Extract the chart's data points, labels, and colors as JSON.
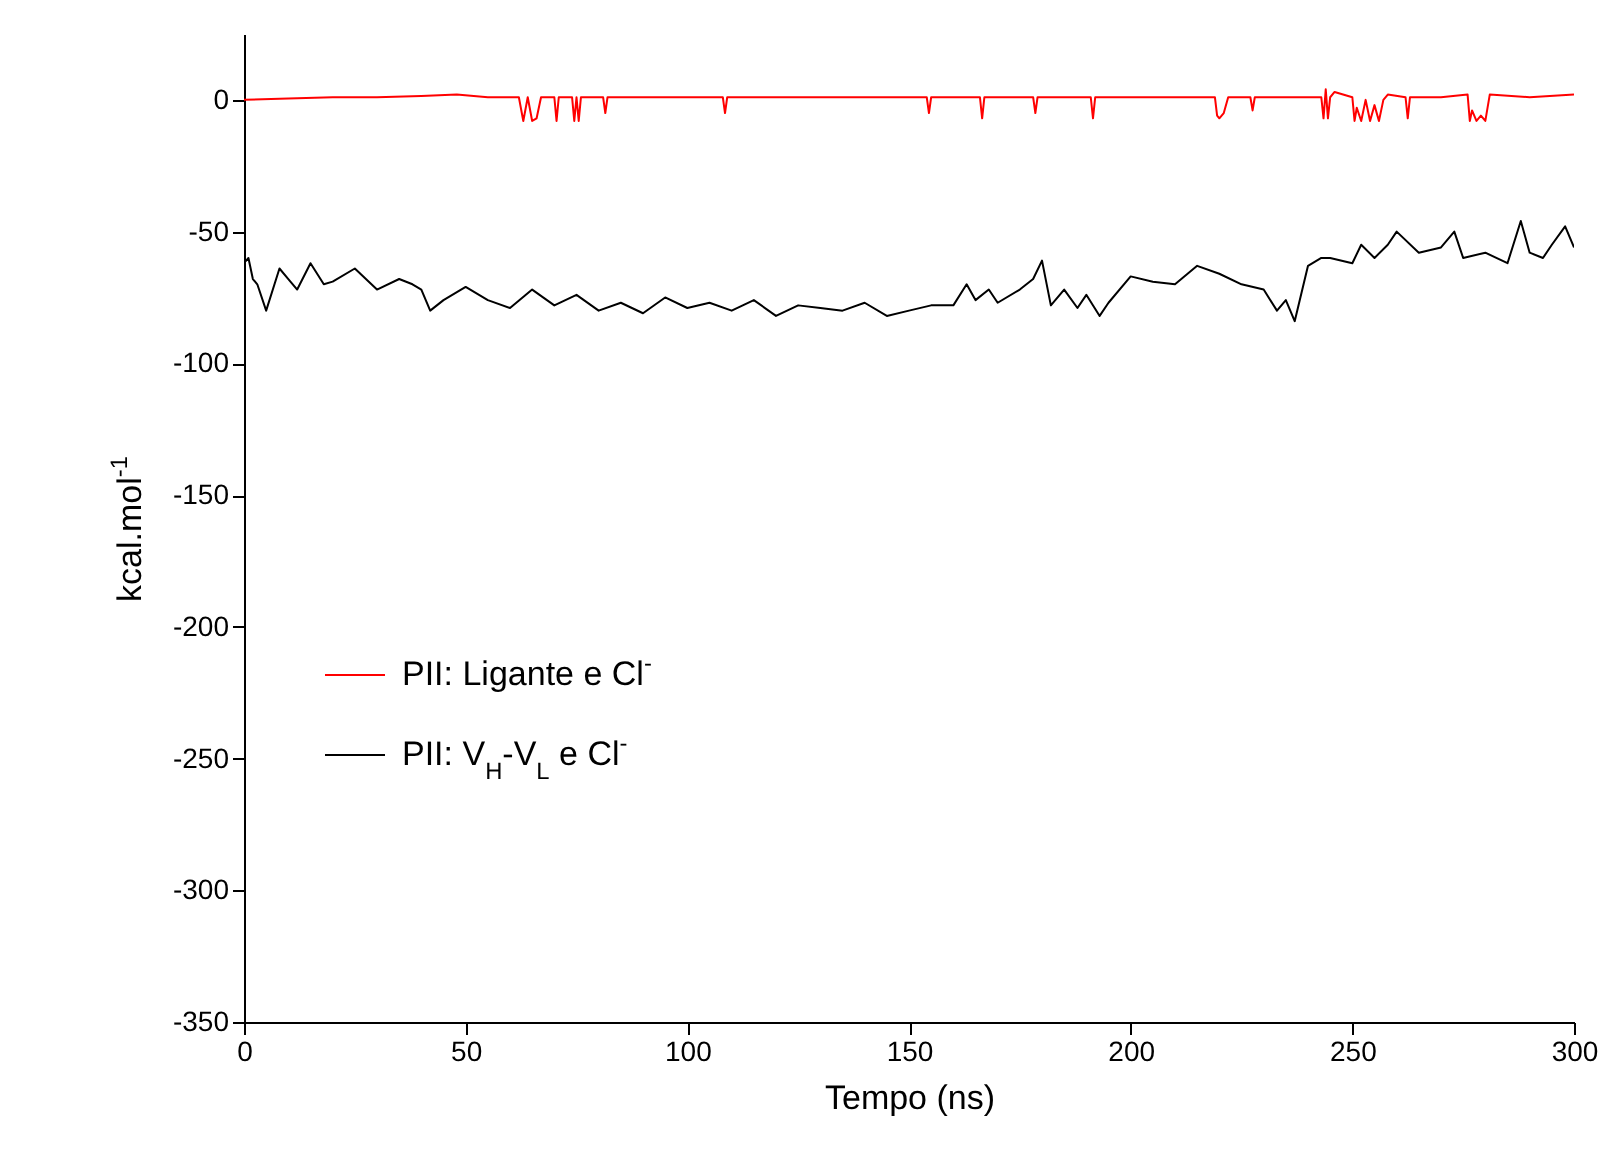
{
  "chart_data": {
    "type": "line",
    "xlabel": "Tempo (ns)",
    "ylabel": "kcal.mol$^{-1}$",
    "xlim": [
      0,
      300
    ],
    "ylim": [
      -350,
      25
    ],
    "xticks": [
      0,
      50,
      100,
      150,
      200,
      250,
      300
    ],
    "yticks": [
      -350,
      -300,
      -250,
      -200,
      -150,
      -100,
      -50,
      0
    ],
    "grid": false,
    "legend": "left",
    "marker": "none",
    "line_style": "solid",
    "series": [
      {
        "name": "PII: Ligante e Cl$^{-}$",
        "color": "#ff0000",
        "x": [
          0,
          10,
          20,
          30,
          40,
          48,
          55,
          62,
          63,
          64,
          65,
          66,
          67,
          70,
          70.5,
          71,
          74,
          74.5,
          75,
          75.5,
          76,
          81,
          81.5,
          82,
          95,
          108,
          108.5,
          109,
          120,
          140,
          154,
          154.5,
          155,
          166,
          166.5,
          167,
          178,
          178.5,
          179,
          191,
          191.5,
          192,
          205,
          219,
          219.5,
          220,
          221,
          222,
          227,
          227.5,
          228,
          235,
          243,
          243.5,
          244,
          244.5,
          245,
          246,
          250,
          250.5,
          251,
          252,
          253,
          254,
          255,
          256,
          257,
          258,
          262,
          262.5,
          263,
          270,
          276,
          276.5,
          277,
          278,
          279,
          280,
          281,
          290,
          300
        ],
        "values": [
          0,
          0.5,
          1,
          1,
          1.5,
          2,
          1,
          1,
          -8,
          1,
          -8,
          -7,
          1,
          1,
          -8,
          1,
          1,
          -8,
          1,
          -8,
          1,
          1,
          -5,
          1,
          1,
          1,
          -5,
          1,
          1,
          1,
          1,
          -5,
          1,
          1,
          -7,
          1,
          1,
          -5,
          1,
          1,
          -7,
          1,
          1,
          1,
          -6,
          -7,
          -5,
          1,
          1,
          -4,
          1,
          1,
          1,
          -7,
          4,
          -7,
          1,
          3,
          1,
          -8,
          -3,
          -8,
          0,
          -8,
          -2,
          -8,
          0,
          2,
          1,
          -7,
          1,
          1,
          2,
          -8,
          -4,
          -8,
          -6,
          -8,
          2,
          1,
          2
        ]
      },
      {
        "name": "PII: V$_{H}$-V$_{L}$ e Cl$^{-}$",
        "color": "#000000",
        "x": [
          0,
          1,
          2,
          3,
          5,
          8,
          10,
          12,
          15,
          18,
          20,
          25,
          30,
          35,
          38,
          40,
          42,
          45,
          50,
          55,
          60,
          65,
          70,
          75,
          80,
          85,
          90,
          95,
          100,
          105,
          110,
          115,
          120,
          125,
          130,
          135,
          140,
          145,
          150,
          155,
          160,
          163,
          165,
          168,
          170,
          175,
          178,
          180,
          182,
          185,
          188,
          190,
          193,
          195,
          200,
          205,
          210,
          215,
          220,
          225,
          230,
          233,
          235,
          237,
          240,
          243,
          245,
          250,
          252,
          255,
          258,
          260,
          265,
          270,
          273,
          275,
          280,
          285,
          288,
          290,
          293,
          295,
          298,
          300
        ],
        "values": [
          -62,
          -60,
          -68,
          -70,
          -80,
          -64,
          -68,
          -72,
          -62,
          -70,
          -69,
          -64,
          -72,
          -68,
          -70,
          -72,
          -80,
          -76,
          -71,
          -76,
          -79,
          -72,
          -78,
          -74,
          -80,
          -77,
          -81,
          -75,
          -79,
          -77,
          -80,
          -76,
          -82,
          -78,
          -79,
          -80,
          -77,
          -82,
          -80,
          -78,
          -78,
          -70,
          -76,
          -72,
          -77,
          -72,
          -68,
          -61,
          -78,
          -72,
          -79,
          -74,
          -82,
          -77,
          -67,
          -69,
          -70,
          -63,
          -66,
          -70,
          -72,
          -80,
          -76,
          -84,
          -63,
          -60,
          -60,
          -62,
          -55,
          -60,
          -55,
          -50,
          -58,
          -56,
          -50,
          -60,
          -58,
          -62,
          -46,
          -58,
          -60,
          -55,
          -48,
          -56
        ]
      }
    ]
  }
}
